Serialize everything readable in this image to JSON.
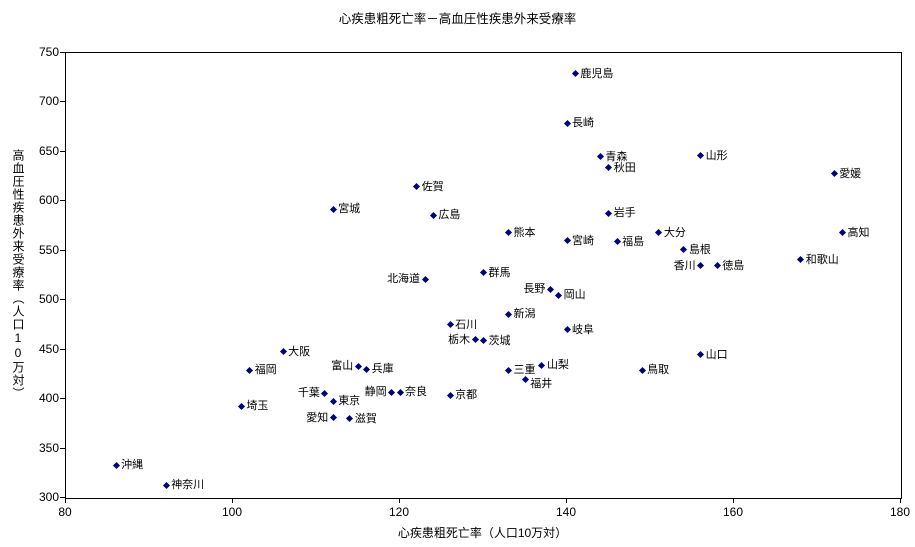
{
  "chart_data": {
    "type": "scatter",
    "title": "心疾患粗死亡率－高血圧性疾患外来受療率",
    "xlabel": "心疾患粗死亡率（人口10万対）",
    "ylabel": "高血圧性疾患外来受療率（人口10万対）",
    "xlim": [
      80,
      180
    ],
    "ylim": [
      300,
      750
    ],
    "x_ticks": [
      80,
      100,
      120,
      140,
      160,
      180
    ],
    "y_ticks": [
      300,
      350,
      400,
      450,
      500,
      550,
      600,
      650,
      700,
      750
    ],
    "marker_color": "#000080",
    "grid": false,
    "legend": "none",
    "points": [
      {
        "label": "沖縄",
        "x": 86,
        "y": 333,
        "side": "r"
      },
      {
        "label": "神奈川",
        "x": 92,
        "y": 313,
        "side": "r"
      },
      {
        "label": "埼玉",
        "x": 101,
        "y": 393,
        "side": "r"
      },
      {
        "label": "福岡",
        "x": 102,
        "y": 429,
        "side": "r"
      },
      {
        "label": "大阪",
        "x": 106,
        "y": 448,
        "side": "r"
      },
      {
        "label": "千葉",
        "x": 111,
        "y": 406,
        "side": "l"
      },
      {
        "label": "愛知",
        "x": 112,
        "y": 381,
        "side": "l"
      },
      {
        "label": "東京",
        "x": 112,
        "y": 398,
        "side": "r"
      },
      {
        "label": "宮城",
        "x": 112,
        "y": 592,
        "side": "r"
      },
      {
        "label": "滋賀",
        "x": 114,
        "y": 380,
        "side": "r"
      },
      {
        "label": "富山",
        "x": 115,
        "y": 433,
        "side": "l"
      },
      {
        "label": "兵庫",
        "x": 116,
        "y": 430,
        "side": "r"
      },
      {
        "label": "静岡",
        "x": 119,
        "y": 407,
        "side": "l"
      },
      {
        "label": "奈良",
        "x": 120,
        "y": 407,
        "side": "r"
      },
      {
        "label": "佐賀",
        "x": 122,
        "y": 615,
        "side": "r"
      },
      {
        "label": "北海道",
        "x": 123,
        "y": 521,
        "side": "l"
      },
      {
        "label": "広島",
        "x": 124,
        "y": 586,
        "side": "r"
      },
      {
        "label": "京都",
        "x": 126,
        "y": 404,
        "side": "r"
      },
      {
        "label": "石川",
        "x": 126,
        "y": 475,
        "side": "r"
      },
      {
        "label": "栃木",
        "x": 129,
        "y": 460,
        "side": "l"
      },
      {
        "label": "茨城",
        "x": 130,
        "y": 459,
        "side": "r"
      },
      {
        "label": "群馬",
        "x": 130,
        "y": 528,
        "side": "r"
      },
      {
        "label": "新潟",
        "x": 133,
        "y": 486,
        "side": "r"
      },
      {
        "label": "三重",
        "x": 133,
        "y": 429,
        "side": "r"
      },
      {
        "label": "熊本",
        "x": 133,
        "y": 568,
        "side": "r"
      },
      {
        "label": "福井",
        "x": 135,
        "y": 420,
        "side": "r",
        "dy": 5
      },
      {
        "label": "山梨",
        "x": 137,
        "y": 434,
        "side": "r"
      },
      {
        "label": "長野",
        "x": 138,
        "y": 511,
        "side": "l"
      },
      {
        "label": "岡山",
        "x": 139,
        "y": 505,
        "side": "r"
      },
      {
        "label": "岐阜",
        "x": 140,
        "y": 470,
        "side": "r"
      },
      {
        "label": "宮崎",
        "x": 140,
        "y": 560,
        "side": "r"
      },
      {
        "label": "長崎",
        "x": 140,
        "y": 679,
        "side": "r"
      },
      {
        "label": "鹿児島",
        "x": 141,
        "y": 729,
        "side": "r"
      },
      {
        "label": "青森",
        "x": 144,
        "y": 645,
        "side": "r"
      },
      {
        "label": "秋田",
        "x": 145,
        "y": 634,
        "side": "r"
      },
      {
        "label": "岩手",
        "x": 145,
        "y": 588,
        "side": "r"
      },
      {
        "label": "福島",
        "x": 146,
        "y": 559,
        "side": "r"
      },
      {
        "label": "鳥取",
        "x": 149,
        "y": 429,
        "side": "r"
      },
      {
        "label": "大分",
        "x": 151,
        "y": 568,
        "side": "r"
      },
      {
        "label": "島根",
        "x": 154,
        "y": 551,
        "side": "r"
      },
      {
        "label": "香川",
        "x": 156,
        "y": 535,
        "side": "l"
      },
      {
        "label": "山口",
        "x": 156,
        "y": 445,
        "side": "r"
      },
      {
        "label": "山形",
        "x": 156,
        "y": 646,
        "side": "r"
      },
      {
        "label": "徳島",
        "x": 158,
        "y": 535,
        "side": "r"
      },
      {
        "label": "和歌山",
        "x": 168,
        "y": 541,
        "side": "r"
      },
      {
        "label": "愛媛",
        "x": 172,
        "y": 628,
        "side": "r"
      },
      {
        "label": "高知",
        "x": 173,
        "y": 568,
        "side": "r"
      }
    ]
  }
}
